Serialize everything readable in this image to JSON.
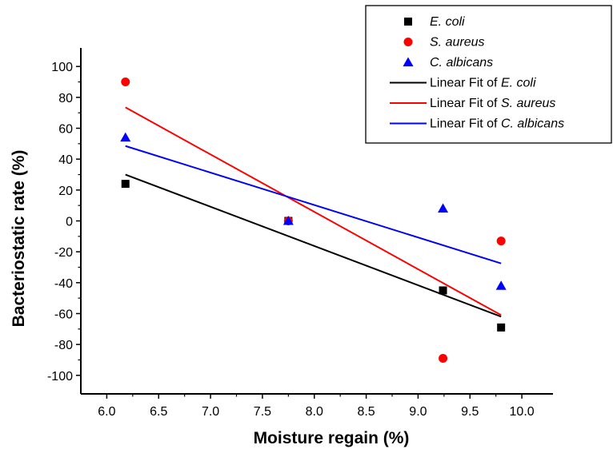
{
  "chart_data": {
    "type": "scatter",
    "xlabel": "Moisture regain (%)",
    "ylabel": "Bacteriostatic rate (%)",
    "xlim": [
      5.75,
      10.3
    ],
    "ylim": [
      -112,
      112
    ],
    "xticks": [
      6.0,
      6.5,
      7.0,
      7.5,
      8.0,
      8.5,
      9.0,
      9.5,
      10.0
    ],
    "xtick_labels": [
      "6.0",
      "6.5",
      "7.0",
      "7.5",
      "8.0",
      "8.5",
      "9.0",
      "9.5",
      "10.0"
    ],
    "yticks": [
      -100,
      -80,
      -60,
      -40,
      -20,
      0,
      20,
      40,
      60,
      80,
      100
    ],
    "ytick_labels": [
      "-100",
      "-80",
      "-60",
      "-40",
      "-20",
      "0",
      "20",
      "40",
      "60",
      "80",
      "100"
    ],
    "legend_position": "top-right",
    "series": [
      {
        "name": "E. coli",
        "marker": "square",
        "color": "#000000",
        "x": [
          6.18,
          7.75,
          9.24,
          9.8
        ],
        "y": [
          24,
          0,
          -45,
          -69
        ]
      },
      {
        "name": "S. aureus",
        "marker": "circle",
        "color": "#ff0000",
        "x": [
          6.18,
          7.75,
          9.24,
          9.8
        ],
        "y": [
          90,
          0,
          -89,
          -13
        ]
      },
      {
        "name": "C. albicans",
        "marker": "triangle",
        "color": "#0000ff",
        "x": [
          6.18,
          7.75,
          9.24,
          9.8
        ],
        "y": [
          54,
          0,
          8,
          -42
        ]
      }
    ],
    "fits": [
      {
        "name_prefix": "Linear Fit of ",
        "name_species": "E. coli",
        "color": "#000000",
        "x": [
          6.18,
          9.8
        ],
        "y": [
          30,
          -62
        ]
      },
      {
        "name_prefix": "Linear Fit of ",
        "name_species": "S. aureus",
        "color": "#ff0000",
        "x": [
          6.18,
          9.8
        ],
        "y": [
          73.5,
          -61
        ]
      },
      {
        "name_prefix": "Linear Fit of ",
        "name_species": "C. albicans",
        "color": "#0000ff",
        "x": [
          6.18,
          9.8
        ],
        "y": [
          48.5,
          -27.5
        ]
      }
    ]
  }
}
